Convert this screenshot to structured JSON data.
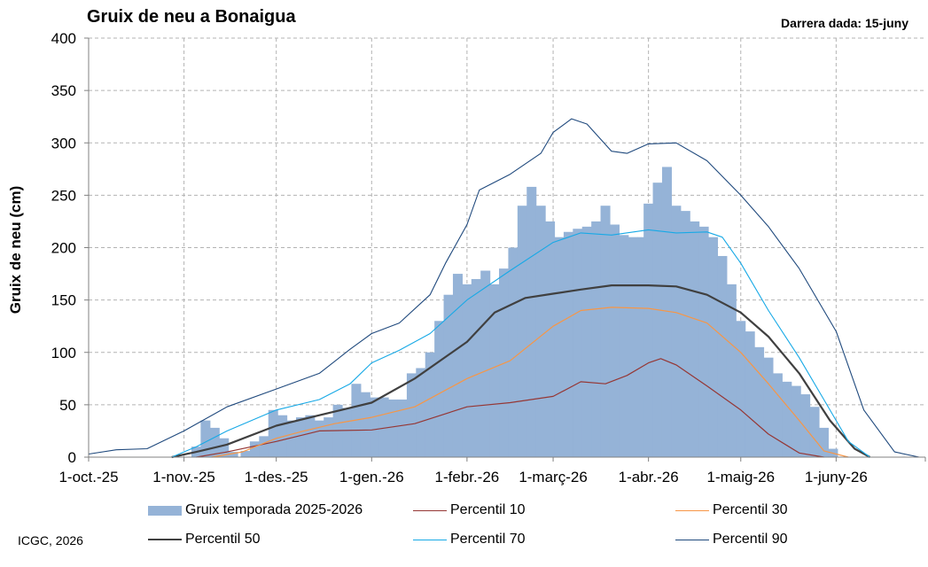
{
  "chart_data": {
    "type": "bar+line",
    "title": "Gruix de neu a Bonaigua",
    "last_date_label": "Darrera dada:  15-juny",
    "ylabel": "Gruix de neu (cm)",
    "ylim": [
      0,
      400
    ],
    "yticks": [
      0,
      50,
      100,
      150,
      200,
      250,
      300,
      350,
      400
    ],
    "x_start": "2025-10-01",
    "x_end": "2026-06-30",
    "xticks": [
      {
        "date": "2025-10-01",
        "label": "1-oct.-25"
      },
      {
        "date": "2025-11-01",
        "label": "1-nov.-25"
      },
      {
        "date": "2025-12-01",
        "label": "1-des.-25"
      },
      {
        "date": "2026-01-01",
        "label": "1-gen.-26"
      },
      {
        "date": "2026-02-01",
        "label": "1-febr.-26"
      },
      {
        "date": "2026-03-01",
        "label": "1-març-26"
      },
      {
        "date": "2026-04-01",
        "label": "1-abr.-26"
      },
      {
        "date": "2026-05-01",
        "label": "1-maig-26"
      },
      {
        "date": "2026-06-01",
        "label": "1-juny-26"
      }
    ],
    "grid": true,
    "legend_position": "bottom",
    "bar_series": {
      "name": "Gruix temporada 2025-2026",
      "color": "#95b3d7",
      "points": [
        [
          "2025-11-05",
          10
        ],
        [
          "2025-11-08",
          35
        ],
        [
          "2025-11-11",
          28
        ],
        [
          "2025-11-14",
          18
        ],
        [
          "2025-11-17",
          5
        ],
        [
          "2025-11-21",
          6
        ],
        [
          "2025-11-24",
          15
        ],
        [
          "2025-11-27",
          20
        ],
        [
          "2025-11-30",
          45
        ],
        [
          "2025-12-03",
          40
        ],
        [
          "2025-12-06",
          35
        ],
        [
          "2025-12-09",
          38
        ],
        [
          "2025-12-12",
          40
        ],
        [
          "2025-12-15",
          35
        ],
        [
          "2025-12-18",
          38
        ],
        [
          "2025-12-21",
          50
        ],
        [
          "2025-12-24",
          47
        ],
        [
          "2025-12-27",
          70
        ],
        [
          "2025-12-30",
          62
        ],
        [
          "2026-01-02",
          57
        ],
        [
          "2026-01-05",
          57
        ],
        [
          "2026-01-08",
          55
        ],
        [
          "2026-01-11",
          55
        ],
        [
          "2026-01-14",
          80
        ],
        [
          "2026-01-17",
          85
        ],
        [
          "2026-01-20",
          100
        ],
        [
          "2026-01-23",
          130
        ],
        [
          "2026-01-26",
          155
        ],
        [
          "2026-01-29",
          175
        ],
        [
          "2026-02-01",
          165
        ],
        [
          "2026-02-04",
          170
        ],
        [
          "2026-02-07",
          178
        ],
        [
          "2026-02-10",
          165
        ],
        [
          "2026-02-13",
          180
        ],
        [
          "2026-02-16",
          200
        ],
        [
          "2026-02-19",
          240
        ],
        [
          "2026-02-22",
          258
        ],
        [
          "2026-02-25",
          240
        ],
        [
          "2026-02-28",
          225
        ],
        [
          "2026-03-03",
          210
        ],
        [
          "2026-03-06",
          215
        ],
        [
          "2026-03-09",
          218
        ],
        [
          "2026-03-12",
          220
        ],
        [
          "2026-03-15",
          225
        ],
        [
          "2026-03-18",
          240
        ],
        [
          "2026-03-21",
          222
        ],
        [
          "2026-03-24",
          212
        ],
        [
          "2026-03-27",
          210
        ],
        [
          "2026-03-30",
          210
        ],
        [
          "2026-04-01",
          242
        ],
        [
          "2026-04-04",
          262
        ],
        [
          "2026-04-07",
          277
        ],
        [
          "2026-04-10",
          240
        ],
        [
          "2026-04-13",
          235
        ],
        [
          "2026-04-16",
          225
        ],
        [
          "2026-04-19",
          220
        ],
        [
          "2026-04-22",
          210
        ],
        [
          "2026-04-25",
          192
        ],
        [
          "2026-04-28",
          165
        ],
        [
          "2026-05-01",
          130
        ],
        [
          "2026-05-04",
          120
        ],
        [
          "2026-05-07",
          105
        ],
        [
          "2026-05-10",
          95
        ],
        [
          "2026-05-13",
          80
        ],
        [
          "2026-05-16",
          72
        ],
        [
          "2026-05-19",
          68
        ],
        [
          "2026-05-22",
          60
        ],
        [
          "2026-05-25",
          48
        ],
        [
          "2026-05-28",
          28
        ],
        [
          "2026-05-31",
          8
        ]
      ]
    },
    "line_series": [
      {
        "name": "Percentil 10",
        "color": "#953735",
        "width": 1.2,
        "points": [
          [
            "2025-11-05",
            0
          ],
          [
            "2025-11-15",
            5
          ],
          [
            "2025-12-01",
            15
          ],
          [
            "2025-12-15",
            25
          ],
          [
            "2026-01-01",
            26
          ],
          [
            "2026-01-15",
            32
          ],
          [
            "2026-02-01",
            48
          ],
          [
            "2026-02-15",
            52
          ],
          [
            "2026-03-01",
            58
          ],
          [
            "2026-03-10",
            72
          ],
          [
            "2026-03-18",
            70
          ],
          [
            "2026-03-25",
            78
          ],
          [
            "2026-04-01",
            90
          ],
          [
            "2026-04-05",
            94
          ],
          [
            "2026-04-10",
            88
          ],
          [
            "2026-04-20",
            68
          ],
          [
            "2026-05-01",
            45
          ],
          [
            "2026-05-10",
            22
          ],
          [
            "2026-05-20",
            4
          ],
          [
            "2026-05-28",
            0
          ]
        ]
      },
      {
        "name": "Percentil 30",
        "color": "#f79646",
        "width": 1.2,
        "points": [
          [
            "2025-11-10",
            0
          ],
          [
            "2025-11-20",
            5
          ],
          [
            "2025-12-01",
            18
          ],
          [
            "2025-12-10",
            25
          ],
          [
            "2025-12-20",
            32
          ],
          [
            "2026-01-01",
            38
          ],
          [
            "2026-01-15",
            48
          ],
          [
            "2026-02-01",
            75
          ],
          [
            "2026-02-15",
            92
          ],
          [
            "2026-03-01",
            125
          ],
          [
            "2026-03-10",
            140
          ],
          [
            "2026-03-20",
            143
          ],
          [
            "2026-04-01",
            142
          ],
          [
            "2026-04-10",
            138
          ],
          [
            "2026-04-20",
            128
          ],
          [
            "2026-05-01",
            100
          ],
          [
            "2026-05-10",
            70
          ],
          [
            "2026-05-20",
            35
          ],
          [
            "2026-05-28",
            6
          ],
          [
            "2026-06-05",
            0
          ]
        ]
      },
      {
        "name": "Percentil 50",
        "color": "#404040",
        "width": 2.2,
        "points": [
          [
            "2025-10-28",
            0
          ],
          [
            "2025-11-05",
            5
          ],
          [
            "2025-11-15",
            12
          ],
          [
            "2025-12-01",
            30
          ],
          [
            "2025-12-15",
            40
          ],
          [
            "2026-01-01",
            52
          ],
          [
            "2026-01-15",
            75
          ],
          [
            "2026-02-01",
            110
          ],
          [
            "2026-02-10",
            138
          ],
          [
            "2026-02-20",
            152
          ],
          [
            "2026-03-01",
            156
          ],
          [
            "2026-03-10",
            160
          ],
          [
            "2026-03-20",
            164
          ],
          [
            "2026-04-01",
            164
          ],
          [
            "2026-04-10",
            163
          ],
          [
            "2026-04-20",
            155
          ],
          [
            "2026-05-01",
            138
          ],
          [
            "2026-05-10",
            115
          ],
          [
            "2026-05-20",
            80
          ],
          [
            "2026-05-30",
            35
          ],
          [
            "2026-06-07",
            8
          ],
          [
            "2026-06-12",
            0
          ]
        ]
      },
      {
        "name": "Percentil 70",
        "color": "#17a9e6",
        "width": 1.1,
        "points": [
          [
            "2025-10-28",
            0
          ],
          [
            "2025-11-05",
            10
          ],
          [
            "2025-11-15",
            25
          ],
          [
            "2025-12-01",
            45
          ],
          [
            "2025-12-15",
            55
          ],
          [
            "2025-12-25",
            70
          ],
          [
            "2026-01-01",
            90
          ],
          [
            "2026-01-10",
            102
          ],
          [
            "2026-01-20",
            118
          ],
          [
            "2026-02-01",
            150
          ],
          [
            "2026-02-15",
            178
          ],
          [
            "2026-03-01",
            205
          ],
          [
            "2026-03-10",
            214
          ],
          [
            "2026-03-20",
            212
          ],
          [
            "2026-04-01",
            217
          ],
          [
            "2026-04-10",
            214
          ],
          [
            "2026-04-20",
            215
          ],
          [
            "2026-04-25",
            210
          ],
          [
            "2026-05-01",
            185
          ],
          [
            "2026-05-10",
            140
          ],
          [
            "2026-05-20",
            95
          ],
          [
            "2026-05-28",
            55
          ],
          [
            "2026-06-05",
            15
          ],
          [
            "2026-06-12",
            0
          ]
        ]
      },
      {
        "name": "Percentil 90",
        "color": "#1f497d",
        "width": 1.1,
        "points": [
          [
            "2025-10-01",
            3
          ],
          [
            "2025-10-10",
            7
          ],
          [
            "2025-10-20",
            8
          ],
          [
            "2025-11-01",
            25
          ],
          [
            "2025-11-15",
            48
          ],
          [
            "2025-12-01",
            65
          ],
          [
            "2025-12-15",
            80
          ],
          [
            "2025-12-25",
            103
          ],
          [
            "2026-01-01",
            118
          ],
          [
            "2026-01-10",
            128
          ],
          [
            "2026-01-20",
            155
          ],
          [
            "2026-01-25",
            185
          ],
          [
            "2026-02-01",
            222
          ],
          [
            "2026-02-05",
            255
          ],
          [
            "2026-02-15",
            270
          ],
          [
            "2026-02-25",
            290
          ],
          [
            "2026-03-01",
            310
          ],
          [
            "2026-03-07",
            323
          ],
          [
            "2026-03-12",
            318
          ],
          [
            "2026-03-20",
            292
          ],
          [
            "2026-03-25",
            290
          ],
          [
            "2026-04-01",
            299
          ],
          [
            "2026-04-10",
            300
          ],
          [
            "2026-04-20",
            283
          ],
          [
            "2026-05-01",
            250
          ],
          [
            "2026-05-10",
            220
          ],
          [
            "2026-05-20",
            180
          ],
          [
            "2026-06-01",
            120
          ],
          [
            "2026-06-10",
            45
          ],
          [
            "2026-06-20",
            5
          ],
          [
            "2026-06-28",
            0
          ]
        ]
      }
    ]
  },
  "credit": "ICGC, 2026"
}
